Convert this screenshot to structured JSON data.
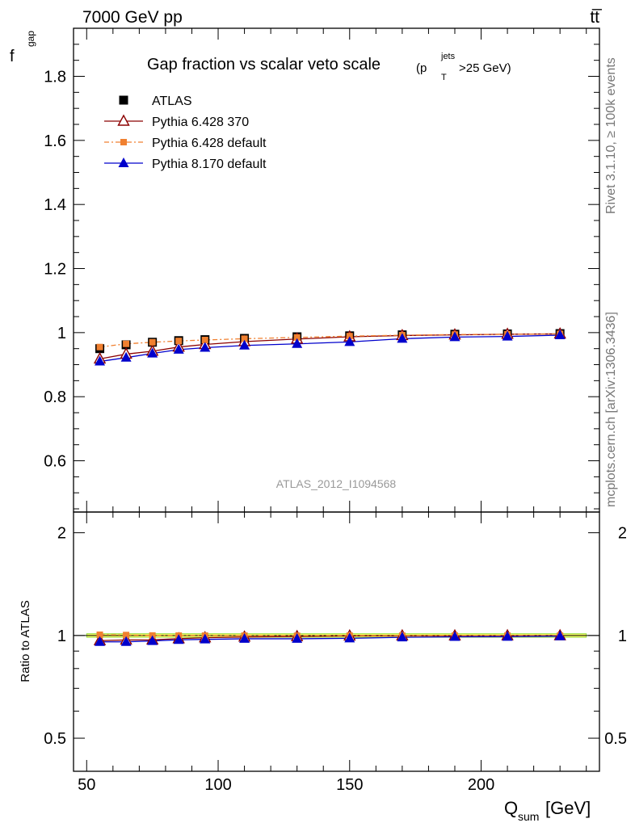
{
  "chart_data": {
    "type": "scatter",
    "header_left": "7000 GeV pp",
    "header_right": "tt̅",
    "title": "Gap fraction vs scalar veto scale",
    "title_cut": {
      "open": "(p",
      "sup": "jets",
      "sub": "T",
      "close": ">25 GeV)"
    },
    "side_text_top": "Rivet 3.1.10, ≥ 100k events",
    "side_text_bottom": "mcplots.cern.ch [arXiv:1306.3436]",
    "watermark": "ATLAS_2012_I1094568",
    "ylabel": {
      "main": "f",
      "sub": "gap"
    },
    "xlabel": {
      "main": "Q",
      "sub": "sum",
      "unit": " [GeV]"
    },
    "ratio_ylabel": "Ratio to ATLAS",
    "xlim": [
      45,
      245
    ],
    "ylim": [
      0.44,
      1.95
    ],
    "ratio_ylim": [
      0.4,
      2.3
    ],
    "x_ticks": [
      50,
      100,
      150,
      200
    ],
    "x_tick_labels": [
      "50",
      "100",
      "150",
      "200"
    ],
    "y_ticks": [
      0.6,
      0.8,
      1.0,
      1.2,
      1.4,
      1.6,
      1.8
    ],
    "y_tick_labels": [
      "0.6",
      "0.8",
      "1",
      "1.2",
      "1.4",
      "1.6",
      "1.8"
    ],
    "ratio_y_ticks": [
      0.5,
      1,
      2
    ],
    "ratio_y_tick_labels": [
      "0.5",
      "1",
      "2"
    ],
    "x": [
      55,
      65,
      75,
      85,
      95,
      110,
      130,
      150,
      170,
      190,
      210,
      230
    ],
    "series": [
      {
        "name": "ATLAS",
        "marker": "square-filled",
        "color": "#000000",
        "values": [
          0.95,
          0.962,
          0.97,
          0.975,
          0.978,
          0.982,
          0.987,
          0.99,
          0.993,
          0.995,
          0.996,
          0.997
        ]
      },
      {
        "name": "Pythia 6.428 370",
        "marker": "triangle-open",
        "color": "#8b0000",
        "values": [
          0.918,
          0.933,
          0.942,
          0.955,
          0.963,
          0.972,
          0.98,
          0.987,
          0.991,
          0.993,
          0.995,
          0.996
        ]
      },
      {
        "name": "Pythia 6.428 default",
        "marker": "square-small",
        "color": "#f08030",
        "values": [
          0.955,
          0.965,
          0.97,
          0.974,
          0.977,
          0.981,
          0.985,
          0.989,
          0.992,
          0.994,
          0.995,
          0.996
        ]
      },
      {
        "name": "Pythia 8.170 default",
        "marker": "triangle-filled",
        "color": "#0000cc",
        "values": [
          0.91,
          0.922,
          0.935,
          0.947,
          0.953,
          0.96,
          0.965,
          0.971,
          0.981,
          0.986,
          0.988,
          0.992
        ]
      }
    ],
    "ratio_series": [
      {
        "name": "Pythia 6.428 370",
        "values": [
          0.966,
          0.97,
          0.971,
          0.979,
          0.985,
          0.99,
          0.993,
          0.997,
          0.998,
          0.998,
          0.999,
          0.999
        ]
      },
      {
        "name": "Pythia 6.428 default",
        "values": [
          1.005,
          1.003,
          1.0,
          0.999,
          0.999,
          0.999,
          0.998,
          0.999,
          0.999,
          0.999,
          0.999,
          0.999
        ]
      },
      {
        "name": "Pythia 8.170 default",
        "values": [
          0.958,
          0.958,
          0.964,
          0.971,
          0.974,
          0.978,
          0.978,
          0.981,
          0.988,
          0.991,
          0.992,
          0.995
        ]
      }
    ],
    "band_color": "#ffff66",
    "band_edge_color": "#99dd44",
    "legend_position": "top-left",
    "grid": false
  }
}
